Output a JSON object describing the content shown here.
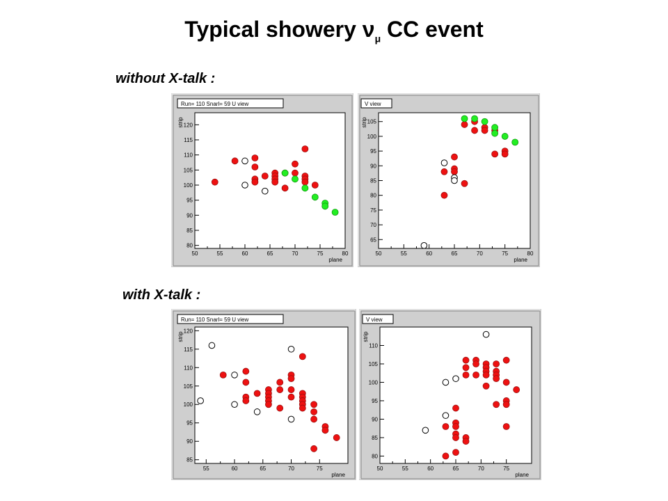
{
  "title": {
    "main": "Typical showery  ν",
    "sub": "μ",
    "tail": " CC event"
  },
  "sections": {
    "without": "without X-talk :",
    "with": "with X-talk :"
  },
  "colors": {
    "hit": "#ee1111",
    "hit_edge": "#991111",
    "track": "#22ee22",
    "track_edge": "#119911",
    "open": "#000000",
    "frame_bg": "#cfcfcf",
    "plot_bg": "#ffffff"
  },
  "chart_data": [
    {
      "type": "scatter",
      "panel": "top-left",
      "legend_title": "Run= 110 Snarl= 59 U view",
      "xlabel": "plane",
      "ylabel": "strip",
      "xlim": [
        50,
        80
      ],
      "ylim": [
        79,
        124
      ],
      "xticks": [
        50,
        55,
        60,
        65,
        70,
        75,
        80
      ],
      "yticks": [
        80,
        85,
        90,
        95,
        100,
        105,
        110,
        115,
        120
      ],
      "series": [
        {
          "marker": "filled",
          "color": "red",
          "points": [
            [
              54,
              101
            ],
            [
              58,
              108
            ],
            [
              62,
              109
            ],
            [
              62,
              106
            ],
            [
              62,
              102
            ],
            [
              62,
              101
            ],
            [
              64,
              103
            ],
            [
              66,
              104
            ],
            [
              66,
              103
            ],
            [
              66,
              102
            ],
            [
              66,
              101
            ],
            [
              68,
              104
            ],
            [
              68,
              99
            ],
            [
              70,
              107
            ],
            [
              70,
              104
            ],
            [
              72,
              112
            ],
            [
              72,
              103
            ],
            [
              72,
              102
            ],
            [
              72,
              101
            ],
            [
              74,
              100
            ]
          ]
        },
        {
          "marker": "filled",
          "color": "green",
          "points": [
            [
              68,
              104
            ],
            [
              70,
              102
            ],
            [
              72,
              99
            ],
            [
              74,
              96
            ],
            [
              76,
              94
            ],
            [
              76,
              93
            ],
            [
              78,
              91
            ]
          ]
        },
        {
          "marker": "open",
          "color": "black",
          "points": [
            [
              60,
              108
            ],
            [
              60,
              100
            ],
            [
              64,
              98
            ]
          ]
        }
      ]
    },
    {
      "type": "scatter",
      "panel": "top-right",
      "legend_title": "V view",
      "xlabel": "plane",
      "ylabel": "strip",
      "xlim": [
        50,
        80
      ],
      "ylim": [
        62,
        108
      ],
      "xticks": [
        50,
        55,
        60,
        65,
        70,
        75,
        80
      ],
      "yticks": [
        65,
        70,
        75,
        80,
        85,
        90,
        95,
        100,
        105
      ],
      "series": [
        {
          "marker": "filled",
          "color": "red",
          "points": [
            [
              63,
              88
            ],
            [
              63,
              80
            ],
            [
              65,
              93
            ],
            [
              65,
              89
            ],
            [
              65,
              88
            ],
            [
              67,
              104
            ],
            [
              67,
              84
            ],
            [
              69,
              105
            ],
            [
              69,
              102
            ],
            [
              71,
              103
            ],
            [
              71,
              102
            ],
            [
              73,
              102
            ],
            [
              73,
              94
            ],
            [
              75,
              95
            ],
            [
              75,
              94
            ]
          ]
        },
        {
          "marker": "filled",
          "color": "green",
          "points": [
            [
              67,
              106
            ],
            [
              69,
              106
            ],
            [
              71,
              105
            ],
            [
              73,
              103
            ],
            [
              73,
              101
            ],
            [
              75,
              100
            ],
            [
              77,
              98
            ]
          ]
        },
        {
          "marker": "open",
          "color": "black",
          "points": [
            [
              59,
              63
            ],
            [
              63,
              91
            ],
            [
              65,
              86
            ],
            [
              65,
              85
            ]
          ]
        }
      ]
    },
    {
      "type": "scatter",
      "panel": "bottom-left",
      "legend_title": "Run= 110 Snarl= 59 U view",
      "xlabel": "plane",
      "ylabel": "strip",
      "xlim": [
        53,
        80
      ],
      "ylim": [
        84,
        121
      ],
      "xticks": [
        55,
        60,
        65,
        70,
        75
      ],
      "yticks": [
        85,
        90,
        95,
        100,
        105,
        110,
        115,
        120
      ],
      "series": [
        {
          "marker": "filled",
          "color": "red",
          "points": [
            [
              58,
              108
            ],
            [
              62,
              109
            ],
            [
              62,
              106
            ],
            [
              62,
              102
            ],
            [
              62,
              101
            ],
            [
              64,
              103
            ],
            [
              66,
              104
            ],
            [
              66,
              103
            ],
            [
              66,
              102
            ],
            [
              66,
              101
            ],
            [
              66,
              100
            ],
            [
              68,
              106
            ],
            [
              68,
              104
            ],
            [
              68,
              99
            ],
            [
              70,
              108
            ],
            [
              70,
              107
            ],
            [
              70,
              104
            ],
            [
              70,
              102
            ],
            [
              72,
              113
            ],
            [
              72,
              103
            ],
            [
              72,
              102
            ],
            [
              72,
              101
            ],
            [
              72,
              100
            ],
            [
              72,
              99
            ],
            [
              74,
              100
            ],
            [
              74,
              98
            ],
            [
              74,
              96
            ],
            [
              74,
              88
            ],
            [
              76,
              94
            ],
            [
              76,
              93
            ],
            [
              78,
              91
            ]
          ]
        },
        {
          "marker": "open",
          "color": "black",
          "points": [
            [
              54,
              101
            ],
            [
              56,
              116
            ],
            [
              60,
              108
            ],
            [
              60,
              100
            ],
            [
              64,
              98
            ],
            [
              70,
              115
            ],
            [
              70,
              96
            ]
          ]
        }
      ]
    },
    {
      "type": "scatter",
      "panel": "bottom-right",
      "legend_title": "V view",
      "xlabel": "plane",
      "ylabel": "strip",
      "xlim": [
        50,
        80
      ],
      "ylim": [
        78,
        115
      ],
      "xticks": [
        50,
        55,
        60,
        65,
        70,
        75
      ],
      "yticks": [
        80,
        85,
        90,
        95,
        100,
        105,
        110
      ],
      "series": [
        {
          "marker": "filled",
          "color": "red",
          "points": [
            [
              63,
              88
            ],
            [
              63,
              80
            ],
            [
              65,
              93
            ],
            [
              65,
              89
            ],
            [
              65,
              88
            ],
            [
              65,
              86
            ],
            [
              65,
              85
            ],
            [
              65,
              81
            ],
            [
              67,
              106
            ],
            [
              67,
              104
            ],
            [
              67,
              102
            ],
            [
              67,
              85
            ],
            [
              67,
              84
            ],
            [
              69,
              106
            ],
            [
              69,
              105
            ],
            [
              69,
              102
            ],
            [
              71,
              105
            ],
            [
              71,
              104
            ],
            [
              71,
              103
            ],
            [
              71,
              102
            ],
            [
              71,
              99
            ],
            [
              73,
              105
            ],
            [
              73,
              103
            ],
            [
              73,
              102
            ],
            [
              73,
              101
            ],
            [
              73,
              94
            ],
            [
              75,
              106
            ],
            [
              75,
              100
            ],
            [
              75,
              95
            ],
            [
              75,
              94
            ],
            [
              75,
              88
            ],
            [
              77,
              98
            ]
          ]
        },
        {
          "marker": "open",
          "color": "black",
          "points": [
            [
              59,
              87
            ],
            [
              63,
              100
            ],
            [
              63,
              91
            ],
            [
              65,
              101
            ],
            [
              71,
              113
            ]
          ]
        }
      ]
    }
  ]
}
